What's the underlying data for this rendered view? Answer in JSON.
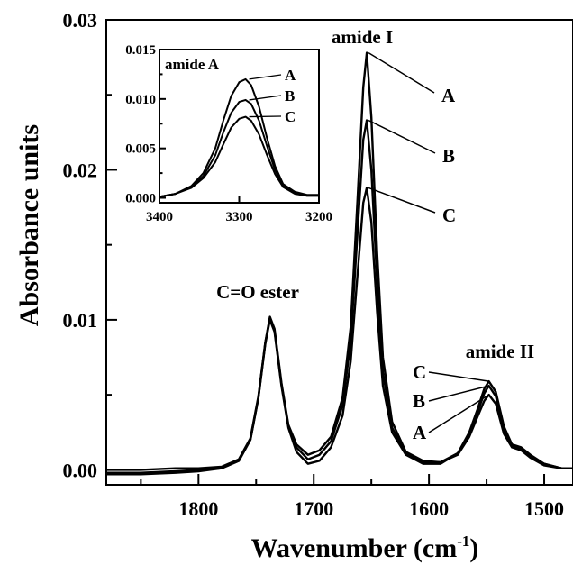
{
  "chart_data": [
    {
      "type": "line",
      "title": "",
      "xlabel": "Wavenumber (cm",
      "xlabel_sup": "-1",
      "xlabel_close": ")",
      "ylabel": "Absorbance units",
      "xlim": [
        1880,
        1475
      ],
      "ylim": [
        -0.001,
        0.03
      ],
      "x_reversed": true,
      "xticks": [
        1800,
        1700,
        1600,
        1500
      ],
      "xtick_labels": [
        "1800",
        "1700",
        "1600",
        "1500"
      ],
      "yticks": [
        0.0,
        0.01,
        0.02,
        0.03
      ],
      "ytick_labels": [
        "0.00",
        "0.01",
        "0.02",
        "0.03"
      ],
      "annotations": [
        "C=O ester",
        "amide I",
        "amide II"
      ],
      "series": [
        {
          "name": "A",
          "points": [
            [
              1880,
              -0.0002
            ],
            [
              1850,
              -0.0002
            ],
            [
              1820,
              -0.0001
            ],
            [
              1800,
              0.0
            ],
            [
              1780,
              0.0001
            ],
            [
              1765,
              0.0006
            ],
            [
              1755,
              0.002
            ],
            [
              1748,
              0.0048
            ],
            [
              1742,
              0.0085
            ],
            [
              1738,
              0.0102
            ],
            [
              1734,
              0.0094
            ],
            [
              1728,
              0.0058
            ],
            [
              1722,
              0.003
            ],
            [
              1715,
              0.0017
            ],
            [
              1705,
              0.001
            ],
            [
              1695,
              0.0013
            ],
            [
              1685,
              0.0022
            ],
            [
              1675,
              0.0048
            ],
            [
              1668,
              0.0095
            ],
            [
              1662,
              0.018
            ],
            [
              1657,
              0.0255
            ],
            [
              1654,
              0.0278
            ],
            [
              1650,
              0.0235
            ],
            [
              1645,
              0.0145
            ],
            [
              1640,
              0.0075
            ],
            [
              1632,
              0.0032
            ],
            [
              1620,
              0.0012
            ],
            [
              1605,
              0.0006
            ],
            [
              1590,
              0.0005
            ],
            [
              1575,
              0.001
            ],
            [
              1565,
              0.0022
            ],
            [
              1558,
              0.0035
            ],
            [
              1552,
              0.0046
            ],
            [
              1548,
              0.005
            ],
            [
              1542,
              0.0044
            ],
            [
              1535,
              0.0024
            ],
            [
              1528,
              0.0015
            ],
            [
              1520,
              0.0013
            ],
            [
              1512,
              0.0008
            ],
            [
              1500,
              0.0003
            ],
            [
              1485,
              0.0001
            ],
            [
              1475,
              0.0001
            ]
          ]
        },
        {
          "name": "B",
          "points": [
            [
              1880,
              0.0
            ],
            [
              1850,
              0.0
            ],
            [
              1820,
              0.0001
            ],
            [
              1800,
              0.0001
            ],
            [
              1780,
              0.0002
            ],
            [
              1765,
              0.0007
            ],
            [
              1755,
              0.0021
            ],
            [
              1748,
              0.0049
            ],
            [
              1742,
              0.0085
            ],
            [
              1738,
              0.0101
            ],
            [
              1734,
              0.0093
            ],
            [
              1728,
              0.0057
            ],
            [
              1722,
              0.0029
            ],
            [
              1715,
              0.0015
            ],
            [
              1705,
              0.0007
            ],
            [
              1695,
              0.001
            ],
            [
              1685,
              0.0019
            ],
            [
              1675,
              0.0043
            ],
            [
              1668,
              0.0085
            ],
            [
              1662,
              0.0158
            ],
            [
              1657,
              0.022
            ],
            [
              1654,
              0.0233
            ],
            [
              1650,
              0.02
            ],
            [
              1645,
              0.0125
            ],
            [
              1640,
              0.0065
            ],
            [
              1632,
              0.0028
            ],
            [
              1620,
              0.0011
            ],
            [
              1605,
              0.0005
            ],
            [
              1590,
              0.0005
            ],
            [
              1575,
              0.0011
            ],
            [
              1565,
              0.0024
            ],
            [
              1558,
              0.0038
            ],
            [
              1552,
              0.0051
            ],
            [
              1548,
              0.0056
            ],
            [
              1542,
              0.0049
            ],
            [
              1535,
              0.0027
            ],
            [
              1528,
              0.0016
            ],
            [
              1520,
              0.0014
            ],
            [
              1512,
              0.0009
            ],
            [
              1500,
              0.0004
            ],
            [
              1485,
              0.0001
            ],
            [
              1475,
              0.0001
            ]
          ]
        },
        {
          "name": "C",
          "points": [
            [
              1880,
              -0.0003
            ],
            [
              1850,
              -0.0003
            ],
            [
              1820,
              -0.0002
            ],
            [
              1800,
              -0.0001
            ],
            [
              1780,
              0.0001
            ],
            [
              1765,
              0.0006
            ],
            [
              1755,
              0.002
            ],
            [
              1748,
              0.0048
            ],
            [
              1742,
              0.0084
            ],
            [
              1738,
              0.01
            ],
            [
              1734,
              0.0092
            ],
            [
              1728,
              0.0056
            ],
            [
              1722,
              0.0028
            ],
            [
              1715,
              0.0012
            ],
            [
              1705,
              0.0004
            ],
            [
              1695,
              0.0006
            ],
            [
              1685,
              0.0015
            ],
            [
              1675,
              0.0036
            ],
            [
              1668,
              0.0072
            ],
            [
              1662,
              0.013
            ],
            [
              1657,
              0.0178
            ],
            [
              1654,
              0.0188
            ],
            [
              1650,
              0.0165
            ],
            [
              1645,
              0.0105
            ],
            [
              1640,
              0.0056
            ],
            [
              1632,
              0.0025
            ],
            [
              1620,
              0.001
            ],
            [
              1605,
              0.0004
            ],
            [
              1590,
              0.0004
            ],
            [
              1575,
              0.0011
            ],
            [
              1565,
              0.0025
            ],
            [
              1558,
              0.004
            ],
            [
              1552,
              0.0054
            ],
            [
              1548,
              0.0059
            ],
            [
              1542,
              0.0052
            ],
            [
              1535,
              0.0029
            ],
            [
              1528,
              0.0017
            ],
            [
              1520,
              0.0015
            ],
            [
              1512,
              0.001
            ],
            [
              1500,
              0.0004
            ],
            [
              1485,
              0.0001
            ],
            [
              1475,
              0.0001
            ]
          ]
        }
      ]
    },
    {
      "type": "line",
      "title": "amide A",
      "xlim": [
        3400,
        3200
      ],
      "ylim": [
        -0.0005,
        0.015
      ],
      "x_reversed": true,
      "xticks": [
        3400,
        3300,
        3200
      ],
      "xtick_labels": [
        "3400",
        "3300",
        "3200"
      ],
      "yticks": [
        0.0,
        0.005,
        0.01,
        0.015
      ],
      "ytick_labels": [
        "0.000",
        "0.005",
        "0.010",
        "0.015"
      ],
      "series": [
        {
          "name": "A",
          "points": [
            [
              3400,
              0.0001
            ],
            [
              3380,
              0.0004
            ],
            [
              3360,
              0.0012
            ],
            [
              3345,
              0.0025
            ],
            [
              3330,
              0.005
            ],
            [
              3320,
              0.0078
            ],
            [
              3310,
              0.0103
            ],
            [
              3300,
              0.0117
            ],
            [
              3292,
              0.012
            ],
            [
              3285,
              0.0114
            ],
            [
              3275,
              0.0092
            ],
            [
              3265,
              0.006
            ],
            [
              3255,
              0.0032
            ],
            [
              3245,
              0.0014
            ],
            [
              3230,
              0.0006
            ],
            [
              3215,
              0.0003
            ],
            [
              3200,
              0.0003
            ]
          ]
        },
        {
          "name": "B",
          "points": [
            [
              3400,
              0.0001
            ],
            [
              3380,
              0.0004
            ],
            [
              3360,
              0.0011
            ],
            [
              3345,
              0.0022
            ],
            [
              3330,
              0.0043
            ],
            [
              3320,
              0.0066
            ],
            [
              3310,
              0.0086
            ],
            [
              3300,
              0.0097
            ],
            [
              3292,
              0.0099
            ],
            [
              3285,
              0.0095
            ],
            [
              3275,
              0.0078
            ],
            [
              3265,
              0.0052
            ],
            [
              3255,
              0.0028
            ],
            [
              3245,
              0.0012
            ],
            [
              3230,
              0.0005
            ],
            [
              3215,
              0.0002
            ],
            [
              3200,
              0.0002
            ]
          ]
        },
        {
          "name": "C",
          "points": [
            [
              3400,
              0.0001
            ],
            [
              3380,
              0.0004
            ],
            [
              3360,
              0.001
            ],
            [
              3345,
              0.002
            ],
            [
              3330,
              0.0036
            ],
            [
              3320,
              0.0054
            ],
            [
              3310,
              0.0071
            ],
            [
              3300,
              0.008
            ],
            [
              3292,
              0.0082
            ],
            [
              3285,
              0.0078
            ],
            [
              3275,
              0.0064
            ],
            [
              3265,
              0.0043
            ],
            [
              3255,
              0.0024
            ],
            [
              3245,
              0.0011
            ],
            [
              3230,
              0.0004
            ],
            [
              3215,
              0.0002
            ],
            [
              3200,
              0.0002
            ]
          ]
        }
      ]
    }
  ]
}
